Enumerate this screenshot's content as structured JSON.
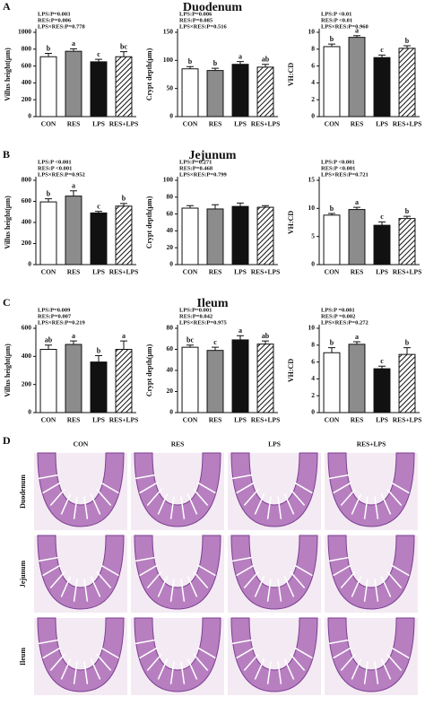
{
  "panels": [
    {
      "letter": "A",
      "title": "Duodenum"
    },
    {
      "letter": "B",
      "title": "Jejunum"
    },
    {
      "letter": "C",
      "title": "Ileum"
    }
  ],
  "chart_data": [
    {
      "type": "bar",
      "ylabel": "Villus height(μm)",
      "categories": [
        "CON",
        "RES",
        "LPS",
        "RES+LPS"
      ],
      "fills": [
        "#ffffff",
        "#8c8c8c",
        "#111111",
        "hatch"
      ],
      "values": [
        710,
        775,
        650,
        710
      ],
      "errors": [
        40,
        30,
        30,
        60
      ],
      "letters": [
        "b",
        "a",
        "c",
        "bc"
      ],
      "stats": [
        "LPS:P=0.003",
        "RES:P=0.006",
        "LPS×RES:P=0.778"
      ],
      "ylim": [
        0,
        1000
      ],
      "yticks": [
        0,
        200,
        400,
        600,
        800,
        1000
      ]
    },
    {
      "type": "bar",
      "ylabel": "Crypt depth(μm)",
      "categories": [
        "CON",
        "RES",
        "LPS",
        "RES+LPS"
      ],
      "fills": [
        "#ffffff",
        "#8c8c8c",
        "#111111",
        "hatch"
      ],
      "values": [
        85,
        82,
        93,
        88
      ],
      "errors": [
        4,
        4,
        5,
        5
      ],
      "letters": [
        "b",
        "b",
        "a",
        "ab"
      ],
      "stats": [
        "LPS:P=0.006",
        "RES:P=0.085",
        "LPS×RES:P=0.516"
      ],
      "ylim": [
        0,
        150
      ],
      "yticks": [
        0,
        50,
        100,
        150
      ]
    },
    {
      "type": "bar",
      "ylabel": "VH:CD",
      "categories": [
        "CON",
        "RES",
        "LPS",
        "RES+LPS"
      ],
      "fills": [
        "#ffffff",
        "#8c8c8c",
        "#111111",
        "hatch"
      ],
      "values": [
        8.3,
        9.4,
        7.0,
        8.1
      ],
      "errors": [
        0.3,
        0.2,
        0.3,
        0.3
      ],
      "letters": [
        "b",
        "a",
        "c",
        "b"
      ],
      "stats": [
        "LPS:P <0.01",
        "RES:P <0.01",
        "LPS×RES:P=0.960"
      ],
      "ylim": [
        0,
        10
      ],
      "yticks": [
        0,
        2,
        4,
        6,
        8,
        10
      ]
    },
    {
      "type": "bar",
      "ylabel": "Villus height(μm)",
      "categories": [
        "CON",
        "RES",
        "LPS",
        "RES+LPS"
      ],
      "fills": [
        "#ffffff",
        "#8c8c8c",
        "#111111",
        "hatch"
      ],
      "values": [
        595,
        650,
        490,
        555
      ],
      "errors": [
        30,
        50,
        15,
        25
      ],
      "letters": [
        "b",
        "a",
        "c",
        "b"
      ],
      "stats": [
        "LPS:P <0.001",
        "RES:P <0.001",
        "LPS×RES:P=0.952"
      ],
      "ylim": [
        0,
        800
      ],
      "yticks": [
        0,
        200,
        400,
        600,
        800
      ]
    },
    {
      "type": "bar",
      "ylabel": "Crypt depth(μm)",
      "categories": [
        "CON",
        "RES",
        "LPS",
        "RES+LPS"
      ],
      "fills": [
        "#ffffff",
        "#8c8c8c",
        "#111111",
        "hatch"
      ],
      "values": [
        67,
        66,
        69,
        68
      ],
      "errors": [
        3,
        5,
        4,
        2
      ],
      "stats": [
        "LPS:P=0.271",
        "RES:P=0.468",
        "LPS×RES:P=0.799"
      ],
      "ylim": [
        0,
        100
      ],
      "yticks": [
        0,
        20,
        40,
        60,
        80,
        100
      ]
    },
    {
      "type": "bar",
      "ylabel": "VH:CD",
      "categories": [
        "CON",
        "RES",
        "LPS",
        "RES+LPS"
      ],
      "fills": [
        "#ffffff",
        "#8c8c8c",
        "#111111",
        "hatch"
      ],
      "values": [
        8.8,
        9.8,
        7.0,
        8.2
      ],
      "errors": [
        0.3,
        0.4,
        0.6,
        0.4
      ],
      "letters": [
        "b",
        "a",
        "c",
        "b"
      ],
      "stats": [
        "LPS:P <0.001",
        "RES:P <0.001",
        "LPS×RES:P=0.721"
      ],
      "ylim": [
        0,
        15
      ],
      "yticks": [
        0,
        5,
        10,
        15
      ]
    },
    {
      "type": "bar",
      "ylabel": "Villus height(μm)",
      "categories": [
        "CON",
        "RES",
        "LPS",
        "RES+LPS"
      ],
      "fills": [
        "#ffffff",
        "#8c8c8c",
        "#111111",
        "hatch"
      ],
      "values": [
        450,
        485,
        360,
        450
      ],
      "errors": [
        30,
        25,
        45,
        60
      ],
      "letters": [
        "ab",
        "a",
        "b",
        "a"
      ],
      "stats": [
        "LPS:P=0.009",
        "RES:P=0.007",
        "LPS×RES:P=0.219"
      ],
      "ylim": [
        0,
        600
      ],
      "yticks": [
        0,
        200,
        400,
        600
      ]
    },
    {
      "type": "bar",
      "ylabel": "Crypt depth(μm)",
      "categories": [
        "CON",
        "RES",
        "LPS",
        "RES+LPS"
      ],
      "fills": [
        "#ffffff",
        "#8c8c8c",
        "#111111",
        "hatch"
      ],
      "values": [
        62,
        59,
        69,
        65
      ],
      "errors": [
        2,
        3,
        4,
        3
      ],
      "letters": [
        "bc",
        "c",
        "a",
        "ab"
      ],
      "stats": [
        "LPS:P=0.001",
        "RES:P=0.042",
        "LPS×RES:P=0.975"
      ],
      "ylim": [
        0,
        80
      ],
      "yticks": [
        0,
        20,
        40,
        60,
        80
      ]
    },
    {
      "type": "bar",
      "ylabel": "VH:CD",
      "categories": [
        "CON",
        "RES",
        "LPS",
        "RES+LPS"
      ],
      "fills": [
        "#ffffff",
        "#8c8c8c",
        "#111111",
        "hatch"
      ],
      "values": [
        7.1,
        8.1,
        5.2,
        6.9
      ],
      "errors": [
        0.6,
        0.3,
        0.3,
        0.8
      ],
      "letters": [
        "b",
        "a",
        "c",
        "b"
      ],
      "stats": [
        "LPS:P =0.001",
        "RES:P =0.002",
        "LPS×RES:P=0.272"
      ],
      "ylim": [
        0,
        10
      ],
      "yticks": [
        0,
        2,
        4,
        6,
        8,
        10
      ]
    }
  ],
  "histology": {
    "letter": "D",
    "columns": [
      "CON",
      "RES",
      "LPS",
      "RES+LPS"
    ],
    "rows": [
      "Duodenum",
      "Jejunum",
      "Ileum"
    ]
  }
}
